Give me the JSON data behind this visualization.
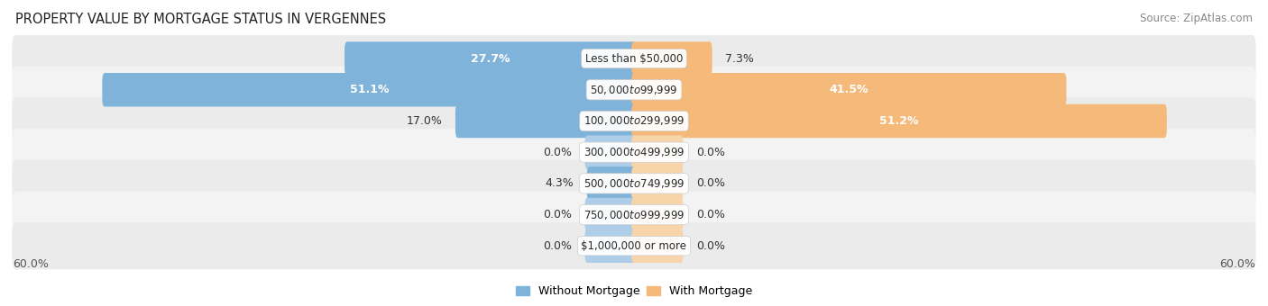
{
  "title": "PROPERTY VALUE BY MORTGAGE STATUS IN VERGENNES",
  "source": "Source: ZipAtlas.com",
  "categories": [
    "Less than $50,000",
    "$50,000 to $99,999",
    "$100,000 to $299,999",
    "$300,000 to $499,999",
    "$500,000 to $749,999",
    "$750,000 to $999,999",
    "$1,000,000 or more"
  ],
  "without_mortgage": [
    27.7,
    51.1,
    17.0,
    0.0,
    4.3,
    0.0,
    0.0
  ],
  "with_mortgage": [
    7.3,
    41.5,
    51.2,
    0.0,
    0.0,
    0.0,
    0.0
  ],
  "max_value": 60.0,
  "color_without": "#7fb3d9",
  "color_with": "#f5b97a",
  "color_without_light": "#aecde8",
  "color_with_light": "#f8d4aa",
  "row_bg_odd": "#ebebeb",
  "row_bg_even": "#f3f3f3",
  "label_fontsize": 9,
  "title_fontsize": 10.5,
  "source_fontsize": 8.5,
  "stub_size": 4.5
}
